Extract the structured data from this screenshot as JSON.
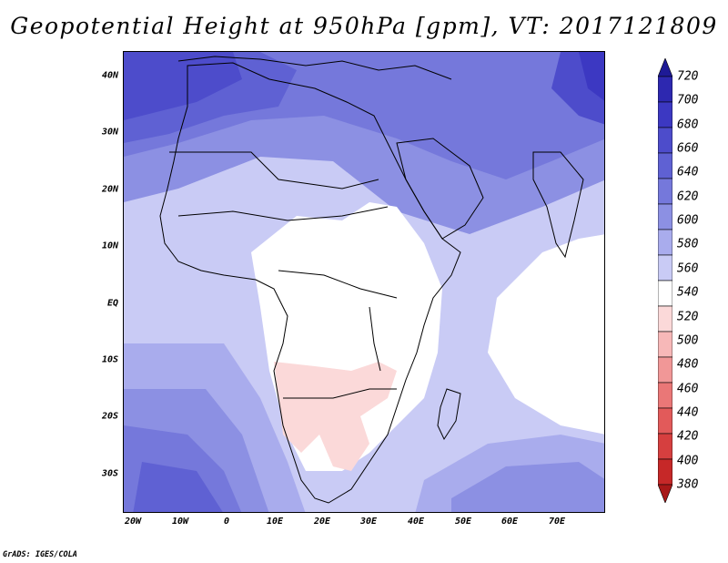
{
  "title": "Geopotential Height at 950hPa [gpm], VT: 2017121809",
  "credit": "GrADS: IGES/COLA",
  "axes": {
    "lat_labels": [
      "40N",
      "30N",
      "20N",
      "10N",
      "EQ",
      "10S",
      "20S",
      "30S"
    ],
    "lon_labels": [
      "20W",
      "10W",
      "0",
      "10E",
      "20E",
      "30E",
      "40E",
      "50E",
      "60E",
      "70E"
    ]
  },
  "colorbar": {
    "levels": [
      "720",
      "700",
      "680",
      "660",
      "640",
      "620",
      "600",
      "580",
      "560",
      "540",
      "520",
      "500",
      "480",
      "460",
      "440",
      "420",
      "400",
      "380"
    ],
    "colors": [
      "#1e1a96",
      "#2d28b0",
      "#3c38c2",
      "#4d4ccb",
      "#5f61d3",
      "#7578db",
      "#8c90e3",
      "#a9aced",
      "#c9cbf5",
      "#ffffff",
      "#fbd9d9",
      "#f7b8b8",
      "#f19797",
      "#ea7777",
      "#e25a5a",
      "#d63f3f",
      "#c62828",
      "#a81818"
    ]
  },
  "map": {
    "colors": {
      "land": "#ffffff",
      "low": "#fbd9d9",
      "c580": "#c9cbf5",
      "c600": "#a9aced",
      "c620": "#8c90e3",
      "c640": "#7578db",
      "c660": "#5f61d3",
      "c680": "#4d4ccb",
      "c700": "#3c38c2",
      "c720": "#2d28b0"
    }
  }
}
